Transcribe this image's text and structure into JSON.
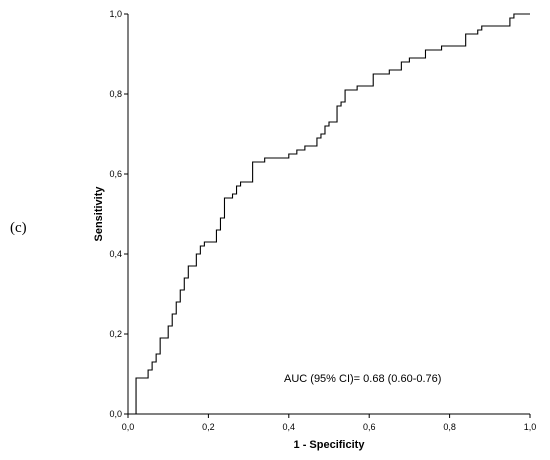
{
  "panel_label": "(c)",
  "chart_data": {
    "type": "line",
    "title": "",
    "xlabel": "1 - Specificity",
    "ylabel": "Sensitivity",
    "xlim": [
      0,
      1
    ],
    "ylim": [
      0,
      1
    ],
    "x_ticks": [
      "0,0",
      "0,2",
      "0,4",
      "0,6",
      "0,8",
      "1,0"
    ],
    "y_ticks": [
      "0,0",
      "0,2",
      "0,4",
      "0,6",
      "0,8",
      "1,0"
    ],
    "grid": false,
    "annotation": "AUC (95% CI)= 0.68 (0.60-0.76)",
    "series": [
      {
        "step": "hv",
        "color": "#000000",
        "points": [
          [
            0.0,
            0.0
          ],
          [
            0.02,
            0.0
          ],
          [
            0.02,
            0.09
          ],
          [
            0.05,
            0.09
          ],
          [
            0.05,
            0.11
          ],
          [
            0.06,
            0.11
          ],
          [
            0.06,
            0.13
          ],
          [
            0.07,
            0.13
          ],
          [
            0.07,
            0.15
          ],
          [
            0.08,
            0.15
          ],
          [
            0.08,
            0.19
          ],
          [
            0.1,
            0.19
          ],
          [
            0.1,
            0.22
          ],
          [
            0.11,
            0.22
          ],
          [
            0.11,
            0.25
          ],
          [
            0.12,
            0.25
          ],
          [
            0.12,
            0.28
          ],
          [
            0.13,
            0.28
          ],
          [
            0.13,
            0.31
          ],
          [
            0.14,
            0.31
          ],
          [
            0.14,
            0.34
          ],
          [
            0.15,
            0.34
          ],
          [
            0.15,
            0.37
          ],
          [
            0.17,
            0.37
          ],
          [
            0.17,
            0.4
          ],
          [
            0.18,
            0.4
          ],
          [
            0.18,
            0.42
          ],
          [
            0.19,
            0.42
          ],
          [
            0.19,
            0.43
          ],
          [
            0.22,
            0.43
          ],
          [
            0.22,
            0.46
          ],
          [
            0.23,
            0.46
          ],
          [
            0.23,
            0.49
          ],
          [
            0.24,
            0.49
          ],
          [
            0.24,
            0.54
          ],
          [
            0.26,
            0.54
          ],
          [
            0.26,
            0.55
          ],
          [
            0.27,
            0.55
          ],
          [
            0.27,
            0.57
          ],
          [
            0.28,
            0.57
          ],
          [
            0.28,
            0.58
          ],
          [
            0.31,
            0.58
          ],
          [
            0.31,
            0.63
          ],
          [
            0.34,
            0.63
          ],
          [
            0.34,
            0.64
          ],
          [
            0.4,
            0.64
          ],
          [
            0.4,
            0.65
          ],
          [
            0.42,
            0.65
          ],
          [
            0.42,
            0.66
          ],
          [
            0.44,
            0.66
          ],
          [
            0.44,
            0.67
          ],
          [
            0.47,
            0.67
          ],
          [
            0.47,
            0.69
          ],
          [
            0.48,
            0.69
          ],
          [
            0.48,
            0.7
          ],
          [
            0.49,
            0.7
          ],
          [
            0.49,
            0.72
          ],
          [
            0.5,
            0.72
          ],
          [
            0.5,
            0.73
          ],
          [
            0.52,
            0.73
          ],
          [
            0.52,
            0.77
          ],
          [
            0.53,
            0.77
          ],
          [
            0.53,
            0.78
          ],
          [
            0.54,
            0.78
          ],
          [
            0.54,
            0.81
          ],
          [
            0.57,
            0.81
          ],
          [
            0.57,
            0.82
          ],
          [
            0.61,
            0.82
          ],
          [
            0.61,
            0.85
          ],
          [
            0.65,
            0.85
          ],
          [
            0.65,
            0.86
          ],
          [
            0.68,
            0.86
          ],
          [
            0.68,
            0.88
          ],
          [
            0.7,
            0.88
          ],
          [
            0.7,
            0.89
          ],
          [
            0.74,
            0.89
          ],
          [
            0.74,
            0.91
          ],
          [
            0.78,
            0.91
          ],
          [
            0.78,
            0.92
          ],
          [
            0.84,
            0.92
          ],
          [
            0.84,
            0.95
          ],
          [
            0.87,
            0.95
          ],
          [
            0.87,
            0.96
          ],
          [
            0.88,
            0.96
          ],
          [
            0.88,
            0.97
          ],
          [
            0.95,
            0.97
          ],
          [
            0.95,
            0.99
          ],
          [
            0.96,
            0.99
          ],
          [
            0.96,
            1.0
          ],
          [
            1.0,
            1.0
          ]
        ]
      }
    ]
  }
}
